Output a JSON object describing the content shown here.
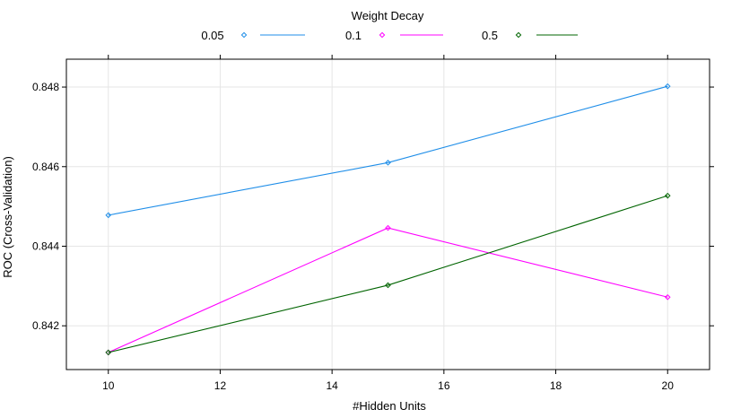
{
  "chart_data": {
    "type": "line",
    "title": "",
    "xlabel": "#Hidden Units",
    "ylabel": "ROC (Cross-Validation)",
    "x": [
      10,
      15,
      20
    ],
    "xlim": [
      9.25,
      20.75
    ],
    "ylim": [
      0.8409,
      0.8487
    ],
    "xticks": [
      10,
      12,
      14,
      16,
      18,
      20
    ],
    "yticks": [
      0.842,
      0.844,
      0.846,
      0.848
    ],
    "xtick_labels": [
      "10",
      "12",
      "14",
      "16",
      "18",
      "20"
    ],
    "ytick_labels": [
      "0.842",
      "0.844",
      "0.846",
      "0.848"
    ],
    "grid": true,
    "legend": {
      "title": "Weight Decay",
      "position": "top"
    },
    "series": [
      {
        "name": "0.05",
        "color": "#1f8ee8",
        "values": [
          0.84478,
          0.8461,
          0.84802
        ]
      },
      {
        "name": "0.1",
        "color": "#ff00ff",
        "values": [
          0.84133,
          0.84446,
          0.84272
        ]
      },
      {
        "name": "0.5",
        "color": "#006400",
        "values": [
          0.84133,
          0.84302,
          0.84527
        ]
      }
    ]
  }
}
